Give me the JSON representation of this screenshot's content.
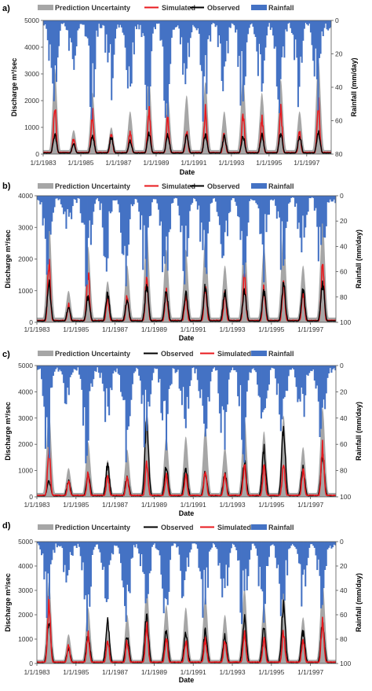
{
  "legend_labels": {
    "uncertainty": "Prediction Uncertainty",
    "simulated": "Simulated",
    "observed": "Observed",
    "rainfall": "Rainfall"
  },
  "colors": {
    "uncertainty": "#a6a6a6",
    "simulated": "#e8191e",
    "observed": "#000000",
    "rainfall": "#4472c4"
  },
  "chart_data": [
    {
      "panel_label": "a)",
      "type": "line",
      "legend_order": [
        "uncertainty",
        "simulated",
        "observed",
        "rainfall"
      ],
      "xlabel": "Date",
      "ylabel_left": "Discharge",
      "ylabel_left_unit": "m³/sec",
      "ylabel_right": "Rainfall  (mm/day)",
      "ylim_left": [
        0,
        5000
      ],
      "yticks_left": [
        0,
        1000,
        2000,
        3000,
        4000,
        5000
      ],
      "ylim_right": [
        0,
        80
      ],
      "yticks_right": [
        0,
        20,
        40,
        60,
        80
      ],
      "right_axis_inverted": true,
      "x_ticks": [
        "1/1/1983",
        "1/1/1985",
        "1/1/1987",
        "1/1/1989",
        "1/1/1991",
        "1/1/1993",
        "1/1/1995",
        "1/1/1997"
      ],
      "x_range_years": [
        1983,
        1998.3
      ],
      "seasonal_peaks": {
        "years": [
          1983,
          1984,
          1985,
          1986,
          1987,
          1988,
          1989,
          1990,
          1991,
          1992,
          1993,
          1994,
          1995,
          1996,
          1997
        ],
        "observed": [
          700,
          350,
          700,
          650,
          500,
          750,
          700,
          650,
          700,
          650,
          650,
          700,
          750,
          650,
          800
        ],
        "simulated": [
          1750,
          600,
          1500,
          800,
          800,
          1650,
          1350,
          800,
          1600,
          800,
          1500,
          1300,
          1700,
          800,
          1900
        ],
        "upper_band": [
          3200,
          900,
          2300,
          1000,
          1600,
          2900,
          2200,
          2200,
          2700,
          1600,
          2900,
          2300,
          2800,
          1600,
          3600
        ],
        "rainfall_max": [
          62,
          35,
          68,
          52,
          70,
          60,
          62,
          55,
          65,
          55,
          66,
          58,
          64,
          52,
          56
        ]
      }
    },
    {
      "panel_label": "b)",
      "type": "line",
      "legend_order": [
        "uncertainty",
        "simulated",
        "observed",
        "rainfall"
      ],
      "xlabel": "Date",
      "ylabel_left": "Discharge",
      "ylabel_left_unit": "m³/sec",
      "ylabel_right": "Rainfall  (mm/day)",
      "ylim_left": [
        0,
        4000
      ],
      "yticks_left": [
        0,
        1000,
        2000,
        3000,
        4000
      ],
      "ylim_right": [
        0,
        100
      ],
      "yticks_right": [
        0,
        20,
        40,
        60,
        80,
        100
      ],
      "right_axis_inverted": true,
      "x_ticks": [
        "1/1/1983",
        "1/1/1985",
        "1/1/1987",
        "1/1/1989",
        "1/1/1991",
        "1/1/1993",
        "1/1/1995",
        "1/1/1997"
      ],
      "x_range_years": [
        1983,
        1998.3
      ],
      "seasonal_peaks": {
        "years": [
          1983,
          1984,
          1985,
          1986,
          1987,
          1988,
          1989,
          1990,
          1991,
          1992,
          1993,
          1994,
          1995,
          1996,
          1997
        ],
        "observed": [
          1200,
          450,
          800,
          900,
          700,
          1100,
          950,
          900,
          1100,
          950,
          1000,
          950,
          1200,
          1000,
          1200
        ],
        "simulated": [
          1900,
          550,
          1600,
          800,
          850,
          1450,
          950,
          850,
          1100,
          900,
          1450,
          1050,
          1250,
          950,
          1900
        ],
        "upper_band": [
          3300,
          1000,
          2400,
          1300,
          1800,
          3000,
          2300,
          2300,
          2700,
          1800,
          2900,
          2400,
          2900,
          1800,
          3300
        ],
        "rainfall_max": [
          80,
          40,
          80,
          60,
          80,
          75,
          78,
          70,
          80,
          70,
          80,
          72,
          80,
          65,
          72
        ]
      }
    },
    {
      "panel_label": "c)",
      "type": "line",
      "legend_order": [
        "uncertainty",
        "observed",
        "simulated",
        "rainfall"
      ],
      "xlabel": "Date",
      "ylabel_left": "Discharge",
      "ylabel_left_unit": "m³/sec",
      "ylabel_right": "Rainfall  (mm/day)",
      "ylim_left": [
        0,
        5000
      ],
      "yticks_left": [
        0,
        1000,
        2000,
        3000,
        4000,
        5000
      ],
      "ylim_right": [
        0,
        100
      ],
      "yticks_right": [
        0,
        20,
        40,
        60,
        80,
        100
      ],
      "right_axis_inverted": true,
      "x_ticks": [
        "1/1/1983",
        "1/1/1985",
        "1/1/1987",
        "1/1/1989",
        "1/1/1991",
        "1/1/1993",
        "1/1/1995",
        "1/1/1997"
      ],
      "x_range_years": [
        1983,
        1998.3
      ],
      "seasonal_peaks": {
        "years": [
          1983,
          1984,
          1985,
          1986,
          1987,
          1988,
          1989,
          1990,
          1991,
          1992,
          1993,
          1994,
          1995,
          1996,
          1997
        ],
        "observed": [
          600,
          600,
          900,
          1200,
          750,
          2800,
          1150,
          1100,
          900,
          850,
          1350,
          1800,
          2600,
          1100,
          1600
        ],
        "simulated": [
          1900,
          600,
          850,
          800,
          750,
          1300,
          800,
          800,
          1000,
          900,
          1250,
          1100,
          1300,
          1000,
          1900
        ],
        "upper_band": [
          3300,
          1100,
          2100,
          1400,
          1800,
          3200,
          2300,
          2300,
          2700,
          1900,
          3100,
          2500,
          3100,
          1900,
          3400
        ],
        "rainfall_max": [
          78,
          40,
          78,
          58,
          80,
          72,
          76,
          66,
          78,
          68,
          78,
          70,
          78,
          62,
          70
        ]
      }
    },
    {
      "panel_label": "d)",
      "type": "line",
      "legend_order": [
        "uncertainty",
        "observed",
        "simulated",
        "rainfall"
      ],
      "xlabel": "Date",
      "ylabel_left": "Discharge",
      "ylabel_left_unit": "m³/sec",
      "ylabel_right": "Rainfall  (mm/day)",
      "ylim_left": [
        0,
        5000
      ],
      "yticks_left": [
        0,
        1000,
        2000,
        3000,
        4000,
        5000
      ],
      "ylim_right": [
        0,
        100
      ],
      "yticks_right": [
        0,
        20,
        40,
        60,
        80,
        100
      ],
      "right_axis_inverted": true,
      "x_ticks": [
        "1/1/1983",
        "1/1/1985",
        "1/1/1987",
        "1/1/1989",
        "1/1/1991",
        "1/1/1993",
        "1/1/1995",
        "1/1/1997"
      ],
      "x_range_years": [
        1983,
        1998.3
      ],
      "seasonal_peaks": {
        "years": [
          1983,
          1984,
          1985,
          1986,
          1987,
          1988,
          1989,
          1990,
          1991,
          1992,
          1993,
          1994,
          1995,
          1996,
          1997
        ],
        "observed": [
          1800,
          600,
          1200,
          1700,
          1100,
          1900,
          1300,
          1200,
          1300,
          1100,
          1800,
          1500,
          2400,
          1300,
          1700
        ],
        "simulated": [
          2600,
          700,
          1200,
          1000,
          900,
          1600,
          1000,
          900,
          1000,
          900,
          1200,
          1000,
          1300,
          1000,
          1800
        ],
        "upper_band": [
          3400,
          1200,
          2300,
          1600,
          2000,
          3200,
          2400,
          2300,
          2800,
          2000,
          3100,
          2500,
          3200,
          1900,
          3400
        ],
        "rainfall_max": [
          78,
          42,
          78,
          60,
          80,
          72,
          76,
          66,
          78,
          68,
          78,
          70,
          78,
          62,
          70
        ]
      }
    }
  ]
}
